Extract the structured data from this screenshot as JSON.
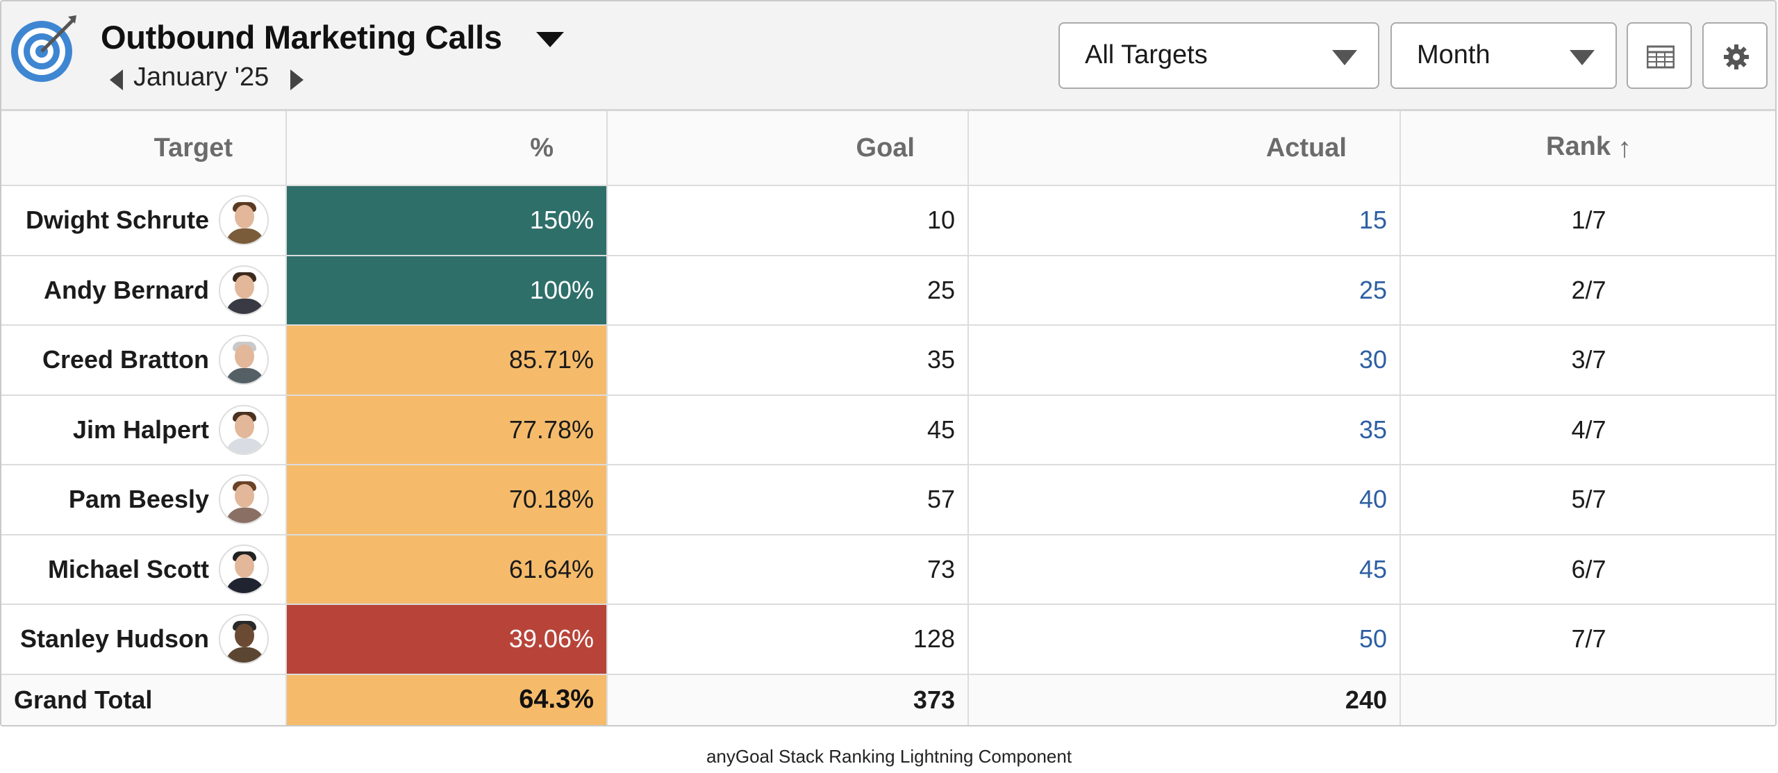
{
  "header": {
    "title": "Outbound Marketing Calls",
    "period": "January '25",
    "target_filter": "All Targets",
    "interval_filter": "Month",
    "table_view_icon": "table-icon",
    "settings_icon": "gear-icon",
    "logo_icon": "target-icon"
  },
  "columns": {
    "target": "Target",
    "pct": "%",
    "goal": "Goal",
    "actual": "Actual",
    "rank": "Rank",
    "rank_sort_icon": "arrow-up-icon"
  },
  "rows": [
    {
      "name": "Dwight Schrute",
      "pct": "150%",
      "goal": "10",
      "actual": "15",
      "rank": "1/7"
    },
    {
      "name": "Andy Bernard",
      "pct": "100%",
      "goal": "25",
      "actual": "25",
      "rank": "2/7"
    },
    {
      "name": "Creed Bratton",
      "pct": "85.71%",
      "goal": "35",
      "actual": "30",
      "rank": "3/7"
    },
    {
      "name": "Jim Halpert",
      "pct": "77.78%",
      "goal": "45",
      "actual": "35",
      "rank": "4/7"
    },
    {
      "name": "Pam Beesly",
      "pct": "70.18%",
      "goal": "57",
      "actual": "40",
      "rank": "5/7"
    },
    {
      "name": "Michael Scott",
      "pct": "61.64%",
      "goal": "73",
      "actual": "45",
      "rank": "6/7"
    },
    {
      "name": "Stanley Hudson",
      "pct": "39.06%",
      "goal": "128",
      "actual": "50",
      "rank": "7/7"
    }
  ],
  "total": {
    "label": "Grand Total",
    "pct": "64.3%",
    "goal": "373",
    "actual": "240"
  },
  "colors": {
    "above_goal": "#2f6f6a",
    "near_goal": "#f5bb6b",
    "below_goal": "#b84439",
    "actual_link": "#2d5fa3"
  },
  "footer": "anyGoal Stack Ranking Lightning Component"
}
